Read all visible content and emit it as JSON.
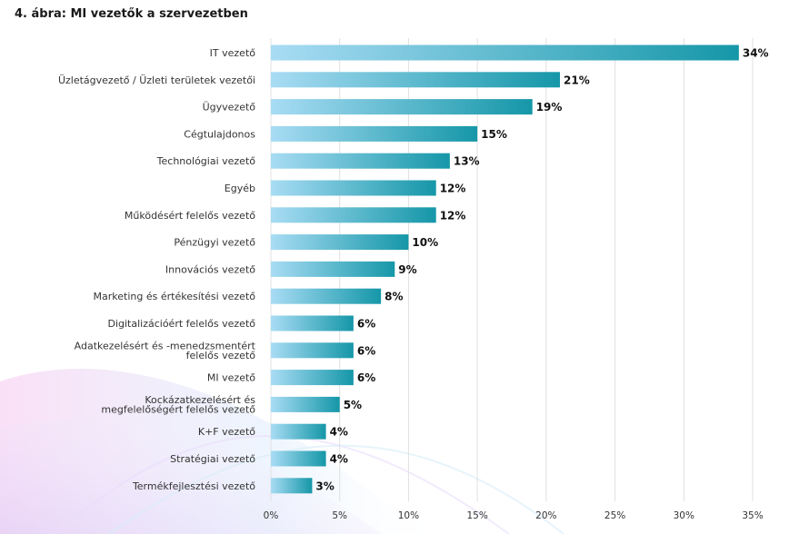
{
  "chart_data": {
    "type": "bar",
    "orientation": "horizontal",
    "title": "4. ábra: MI vezetők a szervezetben",
    "categories": [
      "IT vezető",
      "Üzletágvezető / Üzleti területek vezetői",
      "Ügyvezető",
      "Cégtulajdonos",
      "Technológiai vezető",
      "Egyéb",
      "Működésért felelős vezető",
      "Pénzügyi vezető",
      "Innovációs vezető",
      "Marketing és értékesítési vezető",
      "Digitalizációért felelős vezető",
      "Adatkezelésért és -menedzsmentért felelős vezető",
      "MI vezető",
      "Kockázatkezelésért és megfelelőségért felelős vezető",
      "K+F vezető",
      "Stratégiai vezető",
      "Termékfejlesztési vezető"
    ],
    "category_lines": [
      [
        "IT vezető"
      ],
      [
        "Üzletágvezető / Üzleti területek vezetői"
      ],
      [
        "Ügyvezető"
      ],
      [
        "Cégtulajdonos"
      ],
      [
        "Technológiai vezető"
      ],
      [
        "Egyéb"
      ],
      [
        "Működésért felelős vezető"
      ],
      [
        "Pénzügyi vezető"
      ],
      [
        "Innovációs vezető"
      ],
      [
        "Marketing és értékesítési vezető"
      ],
      [
        "Digitalizációért felelős vezető"
      ],
      [
        "Adatkezelésért és -menedzsmentért",
        "felelős vezető"
      ],
      [
        "MI vezető"
      ],
      [
        "Kockázatkezelésért és",
        "megfelelőségért felelős vezető"
      ],
      [
        "K+F vezető"
      ],
      [
        "Stratégiai vezető"
      ],
      [
        "Termékfejlesztési vezető"
      ]
    ],
    "values": [
      34,
      21,
      19,
      15,
      13,
      12,
      12,
      10,
      9,
      8,
      6,
      6,
      6,
      5,
      4,
      4,
      3
    ],
    "value_labels": [
      "34%",
      "21%",
      "19%",
      "15%",
      "13%",
      "12%",
      "12%",
      "10%",
      "9%",
      "8%",
      "6%",
      "6%",
      "6%",
      "5%",
      "4%",
      "4%",
      "3%"
    ],
    "xlim": [
      0,
      35
    ],
    "ticks": [
      0,
      5,
      10,
      15,
      20,
      25,
      30,
      35
    ],
    "tick_labels": [
      "0%",
      "5%",
      "10%",
      "15%",
      "20%",
      "25%",
      "30%",
      "35%"
    ],
    "grid": true,
    "xlabel": "",
    "ylabel": "",
    "colors": {
      "bar_start": "#a8dcf4",
      "bar_end": "#1597a8",
      "grid": "#e0e0e0"
    }
  }
}
